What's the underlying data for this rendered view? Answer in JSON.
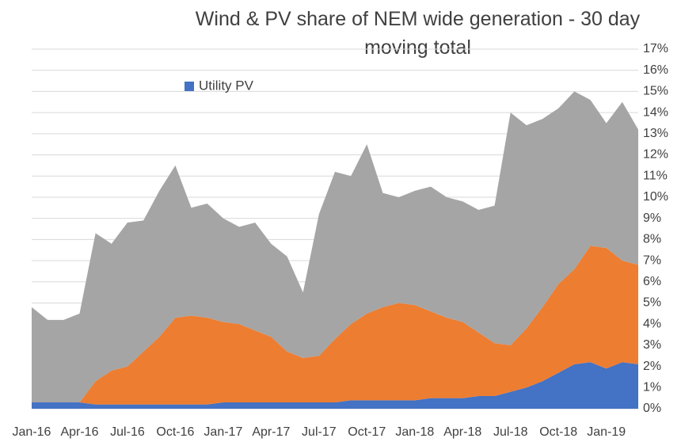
{
  "chart_data": {
    "type": "stacked-area",
    "title": "Wind  & PV share of NEM wide generation - 30 day moving total",
    "categories": [
      "Jan-16",
      null,
      null,
      "Apr-16",
      null,
      null,
      "Jul-16",
      null,
      null,
      "Oct-16",
      null,
      null,
      "Jan-17",
      null,
      null,
      "Apr-17",
      null,
      null,
      "Jul-17",
      null,
      null,
      "Oct-17",
      null,
      null,
      "Jan-18",
      null,
      null,
      "Apr-18",
      null,
      null,
      "Jul-18",
      null,
      null,
      "Oct-18",
      null,
      null,
      "Jan-19",
      null,
      null
    ],
    "series": [
      {
        "name": "Utility PV",
        "color": "#4472c4",
        "values": [
          0.3,
          0.3,
          0.3,
          0.3,
          0.2,
          0.2,
          0.2,
          0.2,
          0.2,
          0.2,
          0.2,
          0.2,
          0.3,
          0.3,
          0.3,
          0.3,
          0.3,
          0.3,
          0.3,
          0.3,
          0.4,
          0.4,
          0.4,
          0.4,
          0.4,
          0.5,
          0.5,
          0.5,
          0.6,
          0.6,
          0.8,
          1.0,
          1.3,
          1.7,
          2.1,
          2.2,
          1.9,
          2.2,
          2.1
        ]
      },
      {
        "color": "#ed7d31",
        "values": [
          0,
          0,
          0,
          0,
          1.1,
          1.6,
          1.8,
          2.5,
          3.2,
          4.1,
          4.2,
          4.1,
          3.8,
          3.7,
          3.4,
          3.1,
          2.4,
          2.1,
          2.2,
          3.0,
          3.6,
          4.1,
          4.4,
          4.6,
          4.5,
          4.1,
          3.8,
          3.6,
          3.0,
          2.5,
          2.2,
          2.8,
          3.5,
          4.2,
          4.5,
          5.5,
          5.7,
          4.8,
          4.7
        ]
      },
      {
        "color": "#a5a5a5",
        "values": [
          4.5,
          3.9,
          3.9,
          4.2,
          7.0,
          6.0,
          6.8,
          6.2,
          6.9,
          7.2,
          5.1,
          5.4,
          4.9,
          4.6,
          5.1,
          4.4,
          4.5,
          3.1,
          6.7,
          7.9,
          7.0,
          8.0,
          5.4,
          5.0,
          5.4,
          5.9,
          5.7,
          5.7,
          5.8,
          6.5,
          11.0,
          9.6,
          8.9,
          8.3,
          8.4,
          6.9,
          5.9,
          7.5,
          6.4
        ]
      }
    ],
    "ylim": [
      0,
      17
    ],
    "yticks": [
      {
        "value": 0,
        "label": "0%"
      },
      {
        "value": 1,
        "label": "1%"
      },
      {
        "value": 2,
        "label": "2%"
      },
      {
        "value": 3,
        "label": "3%"
      },
      {
        "value": 4,
        "label": "4%"
      },
      {
        "value": 5,
        "label": "5%"
      },
      {
        "value": 6,
        "label": "6%"
      },
      {
        "value": 7,
        "label": "7%"
      },
      {
        "value": 8,
        "label": "8%"
      },
      {
        "value": 9,
        "label": "9%"
      },
      {
        "value": 10,
        "label": "10%"
      },
      {
        "value": 11,
        "label": "11%"
      },
      {
        "value": 12,
        "label": "12%"
      },
      {
        "value": 13,
        "label": "13%"
      },
      {
        "value": 14,
        "label": "14%"
      },
      {
        "value": 15,
        "label": "15%"
      },
      {
        "value": 16,
        "label": "16%"
      },
      {
        "value": 17,
        "label": "17%"
      }
    ],
    "grid": true,
    "legend": "top-left"
  }
}
